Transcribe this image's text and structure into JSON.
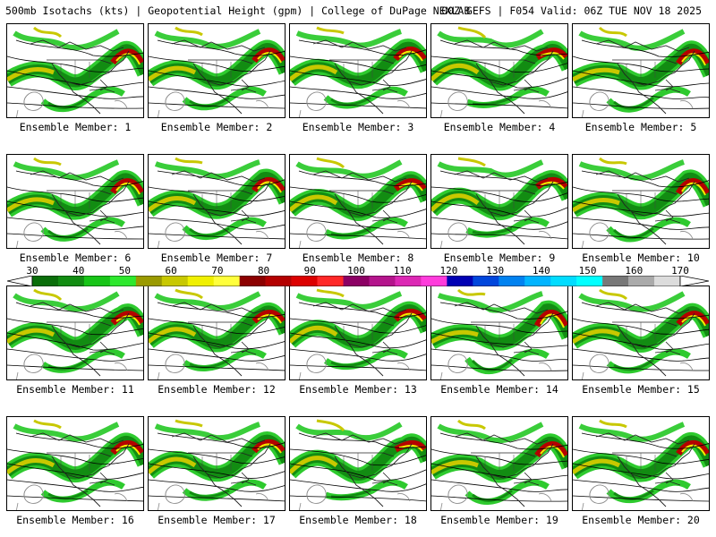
{
  "title": {
    "left": "500mb Isotachs (kts) | Geopotential Height (gpm) | College of DuPage NEXLAB",
    "right": "00Z GEFS | F054 Valid: 06Z TUE NOV 18 2025"
  },
  "colorbar": {
    "labels": [
      "30",
      "40",
      "50",
      "60",
      "70",
      "80",
      "90",
      "100",
      "110",
      "120",
      "130",
      "140",
      "150",
      "160",
      "170"
    ],
    "colors": [
      "#0a6e0a",
      "#128c12",
      "#17c417",
      "#2ee82e",
      "#9a9a00",
      "#c8c800",
      "#f0f000",
      "#ffff3c",
      "#8c0000",
      "#b40000",
      "#dc0000",
      "#ff2828",
      "#8c0064",
      "#b4148c",
      "#dc28b4",
      "#ff3cdc",
      "#0000b4",
      "#0046dc",
      "#0082f0",
      "#00b4ff",
      "#00dcff",
      "#00ffff",
      "#787878",
      "#aaaaaa",
      "#dcdcdc"
    ]
  },
  "panels": [
    {
      "label": "Ensemble Member: 1"
    },
    {
      "label": "Ensemble Member: 2"
    },
    {
      "label": "Ensemble Member: 3"
    },
    {
      "label": "Ensemble Member: 4"
    },
    {
      "label": "Ensemble Member: 5"
    },
    {
      "label": "Ensemble Member: 6"
    },
    {
      "label": "Ensemble Member: 7"
    },
    {
      "label": "Ensemble Member: 8"
    },
    {
      "label": "Ensemble Member: 9"
    },
    {
      "label": "Ensemble Member: 10"
    },
    {
      "label": "Ensemble Member: 11"
    },
    {
      "label": "Ensemble Member: 12"
    },
    {
      "label": "Ensemble Member: 13"
    },
    {
      "label": "Ensemble Member: 14"
    },
    {
      "label": "Ensemble Member: 15"
    },
    {
      "label": "Ensemble Member: 16"
    },
    {
      "label": "Ensemble Member: 17"
    },
    {
      "label": "Ensemble Member: 18"
    },
    {
      "label": "Ensemble Member: 19"
    },
    {
      "label": "Ensemble Member: 20"
    }
  ]
}
